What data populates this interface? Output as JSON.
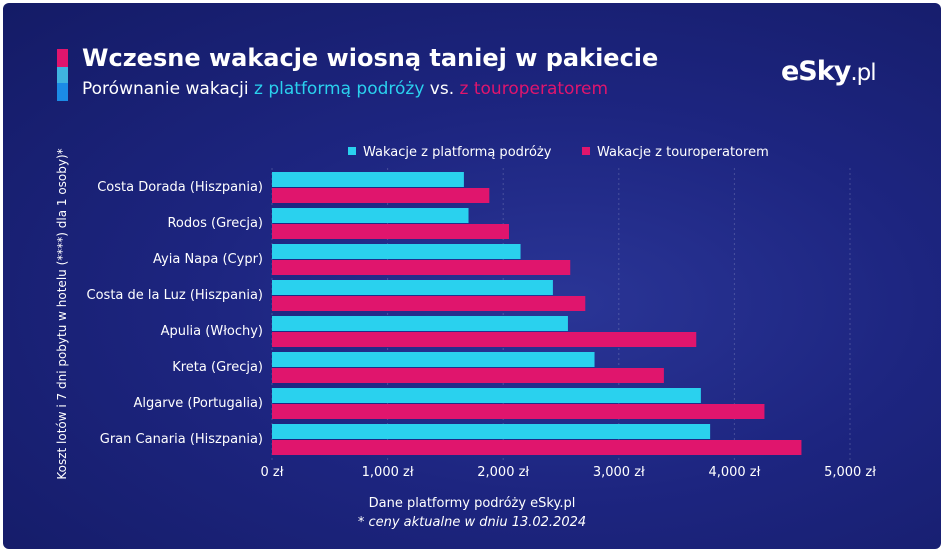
{
  "header": {
    "title": "Wczesne wakacje wiosną taniej w pakiecie",
    "subtitle_prefix": "Porównanie wakacji ",
    "subtitle_cyan": "z platformą podróży",
    "subtitle_mid": " vs. ",
    "subtitle_pink": "z touroperatorem"
  },
  "logo": {
    "main": "eSky",
    "suffix": ".pl"
  },
  "colors": {
    "accent_pink": "#e0156d",
    "accent_cyan": "#2ad1ee",
    "accent_blue": "#1b8be6",
    "background": "#1d2580"
  },
  "chart_data": {
    "type": "bar",
    "orientation": "horizontal",
    "categories": [
      "Costa Dorada (Hiszpania)",
      "Rodos (Grecja)",
      "Ayia Napa (Cypr)",
      "Costa de la Luz (Hiszpania)",
      "Apulia (Włochy)",
      "Kreta (Grecja)",
      "Algarve (Portugalia)",
      "Gran Canaria (Hiszpania)"
    ],
    "series": [
      {
        "name": "Wakacje z platformą podróży",
        "color": "#2ad1ee",
        "values": [
          1660,
          1700,
          2150,
          2430,
          2560,
          2790,
          3710,
          3790
        ]
      },
      {
        "name": "Wakacje z touroperatorem",
        "color": "#e0156d",
        "values": [
          1880,
          2050,
          2580,
          2710,
          3670,
          3390,
          4260,
          4580
        ]
      }
    ],
    "xlim": [
      0,
      5000
    ],
    "xticks": [
      0,
      1000,
      2000,
      3000,
      4000,
      5000
    ],
    "xtick_labels": [
      "0 zł",
      "1,000 zł",
      "2,000 zł",
      "3,000 zł",
      "4,000 zł",
      "5,000 zł"
    ],
    "ylabel": "Koszt lotów i 7 dni pobytu w hotelu (****) dla 1 osoby)*",
    "legend_position": "top",
    "grid": true
  },
  "footer": {
    "source": "Dane platformy podróży eSky.pl",
    "note": "* ceny aktualne w dniu 13.02.2024"
  }
}
